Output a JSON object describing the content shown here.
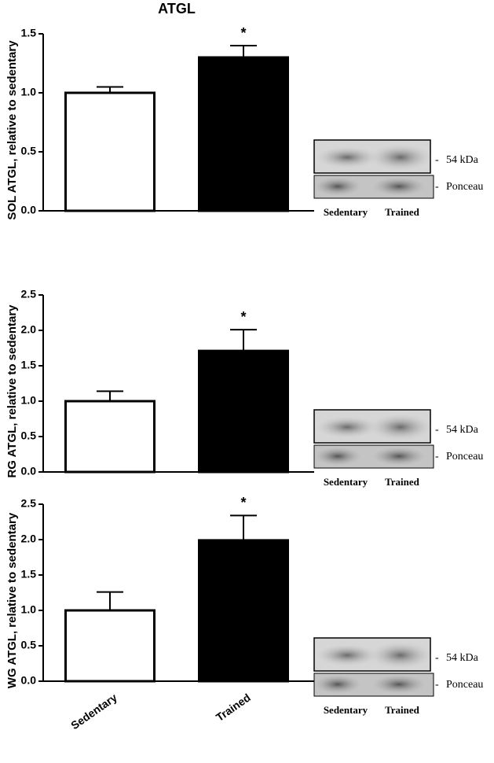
{
  "chart_data": [
    {
      "type": "bar",
      "title": "ATGL",
      "y_label": "SOL ATGL, relative to sedentary",
      "categories": [
        null,
        null
      ],
      "values": [
        1.0,
        1.3
      ],
      "errors": [
        0.05,
        0.1
      ],
      "colors": [
        "#ffffff",
        "#000000"
      ],
      "significance_labels": [
        null,
        "*"
      ],
      "ylim": [
        0,
        1.5
      ],
      "yticks": [
        {
          "value": 0,
          "label": "0.0"
        },
        0.5,
        {
          "value": 1,
          "label": "1.0"
        },
        1.5
      ],
      "blot": {
        "band_label": "54 kDa",
        "control_label": "Ponceau",
        "lanes": [
          "Sedentary",
          "Trained"
        ]
      }
    },
    {
      "type": "bar",
      "y_label": "RG ATGL, relative to sedentary",
      "categories": [
        null,
        null
      ],
      "values": [
        1.0,
        1.71
      ],
      "errors": [
        0.14,
        0.3
      ],
      "colors": [
        "#ffffff",
        "#000000"
      ],
      "significance_labels": [
        null,
        "*"
      ],
      "ylim": [
        0,
        2.5
      ],
      "yticks": [
        {
          "value": 0,
          "label": "0.0"
        },
        0.5,
        {
          "value": 1,
          "label": "1.0"
        },
        1.5,
        {
          "value": 2,
          "label": "2.0"
        },
        2.5
      ],
      "blot": {
        "band_label": "54 kDa",
        "control_label": "Ponceau",
        "lanes": [
          "Sedentary",
          "Trained"
        ]
      }
    },
    {
      "type": "bar",
      "y_label": "WG ATGL, relative to sedentary",
      "categories": [
        "Sedentary",
        "Trained"
      ],
      "values": [
        1.0,
        1.99
      ],
      "errors": [
        0.26,
        0.35
      ],
      "colors": [
        "#ffffff",
        "#000000"
      ],
      "significance_labels": [
        null,
        "*"
      ],
      "ylim": [
        0,
        2.5
      ],
      "yticks": [
        {
          "value": 0,
          "label": "0.0"
        },
        0.5,
        {
          "value": 1,
          "label": "1.0"
        },
        1.5,
        {
          "value": 2,
          "label": "2.0"
        },
        2.5
      ],
      "blot": {
        "band_label": "54 kDa",
        "control_label": "Ponceau",
        "lanes": [
          "Sedentary",
          "Trained"
        ]
      }
    }
  ]
}
